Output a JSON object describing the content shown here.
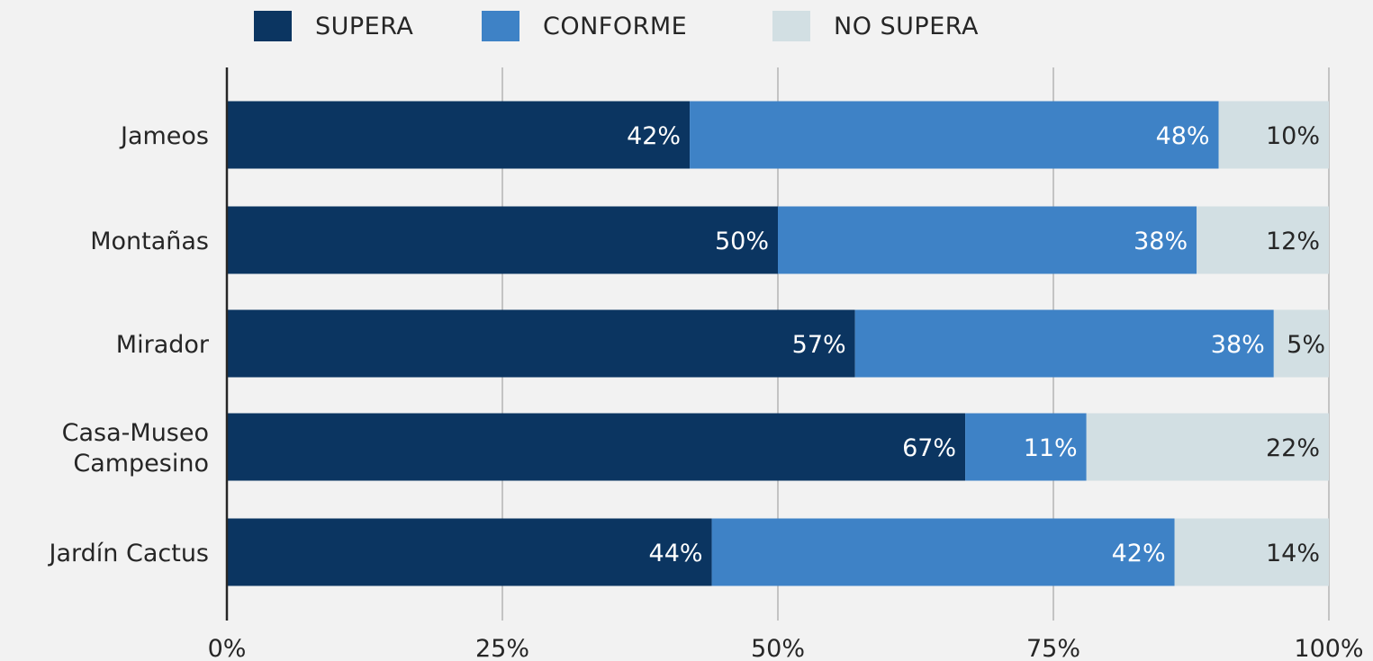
{
  "chart_data": {
    "type": "bar",
    "orientation": "horizontal",
    "stacked": true,
    "categories": [
      [
        "Jameos"
      ],
      [
        "Montañas"
      ],
      [
        "Mirador"
      ],
      [
        "Casa-Museo",
        "Campesino"
      ],
      [
        "Jardín Cactus"
      ]
    ],
    "series": [
      {
        "name": "SUPERA",
        "color": "#0b3561",
        "label_color": "#ffffff",
        "values": [
          42,
          50,
          57,
          67,
          44
        ]
      },
      {
        "name": "CONFORME",
        "color": "#3e82c6",
        "label_color": "#ffffff",
        "values": [
          48,
          38,
          38,
          11,
          42
        ]
      },
      {
        "name": "NO SUPERA",
        "color": "#d2dfe3",
        "label_color": "#262626",
        "values": [
          10,
          12,
          5,
          22,
          14
        ]
      }
    ],
    "value_suffix": "%",
    "xlim": [
      0,
      100
    ],
    "xticks": [
      {
        "value": 0,
        "label": "0%"
      },
      {
        "value": 25,
        "label": "25%"
      },
      {
        "value": 50,
        "label": "50%"
      },
      {
        "value": 75,
        "label": "75%"
      },
      {
        "value": 100,
        "label": "100%"
      }
    ],
    "grid": true,
    "legend": "top-center"
  }
}
